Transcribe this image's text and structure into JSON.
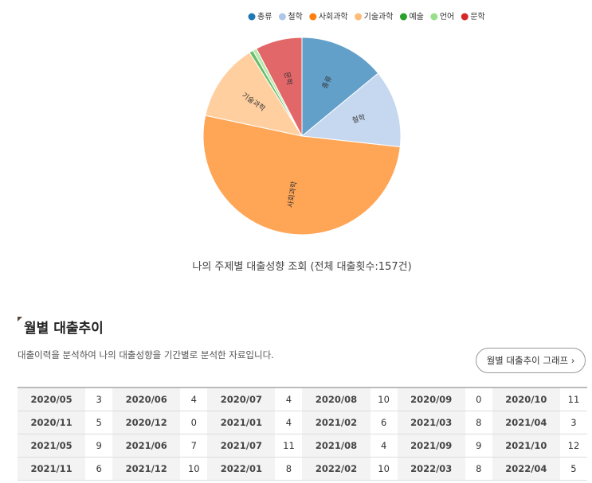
{
  "chart_data": {
    "type": "pie",
    "categories": [
      "총류",
      "철학",
      "사회과학",
      "기술과학",
      "예술",
      "언어",
      "문학"
    ],
    "values": [
      22,
      20,
      81,
      20,
      1,
      1,
      12
    ],
    "colors": [
      "#1f77b4",
      "#aec7e8",
      "#ff7f0e",
      "#ffbb78",
      "#2ca02c",
      "#98df8a",
      "#d62728"
    ],
    "legend": "top"
  },
  "caption": "나의 주제별 대출성향 조회 (전체 대출횟수:157건)",
  "section": {
    "title": "월별 대출추이",
    "description": "대출이력을 분석하여 나의 대출성향을 기간별로 분석한 자료입니다.",
    "button": "월별 대출추이 그래프  ›"
  },
  "table": {
    "rows": [
      [
        "2020/05",
        3,
        "2020/06",
        4,
        "2020/07",
        4,
        "2020/08",
        10,
        "2020/09",
        0,
        "2020/10",
        11
      ],
      [
        "2020/11",
        5,
        "2020/12",
        0,
        "2021/01",
        4,
        "2021/02",
        6,
        "2021/03",
        8,
        "2021/04",
        3
      ],
      [
        "2021/05",
        9,
        "2021/06",
        7,
        "2021/07",
        11,
        "2021/08",
        4,
        "2021/09",
        9,
        "2021/10",
        12
      ],
      [
        "2021/11",
        6,
        "2021/12",
        10,
        "2022/01",
        8,
        "2022/02",
        10,
        "2022/03",
        8,
        "2022/04",
        5
      ]
    ]
  }
}
